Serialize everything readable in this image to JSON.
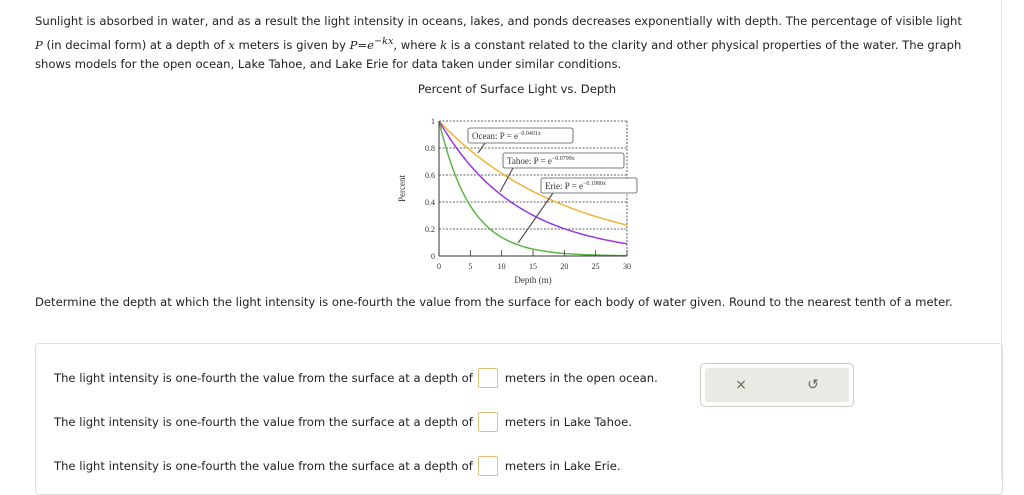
{
  "intro": {
    "line1": "Sunlight is absorbed in water, and as a result the light intensity in oceans, lakes, and ponds decreases exponentially with depth. The percentage of visible light",
    "line2_var": "P",
    "line2_a": " (in decimal form) at a depth of ",
    "line2_x": "x",
    "line2_b": " meters is given by ",
    "formula": "P=e",
    "formula_exp": "−kx",
    "line2_c": ", where ",
    "line2_k": "k",
    "line2_d": " is a constant related to the clarity and other physical properties of the water. The graph",
    "line3": "shows models for the open ocean, Lake Tahoe, and Lake Erie for data taken under similar conditions."
  },
  "chart_data": {
    "type": "line",
    "title": "Percent of Surface Light vs. Depth",
    "xlabel": "Depth (m)",
    "ylabel": "Percent",
    "xlim": [
      0,
      30
    ],
    "ylim": [
      0,
      1
    ],
    "xticks": [
      "0",
      "5",
      "10",
      "15",
      "20",
      "25",
      "30"
    ],
    "yticks": [
      "0",
      "0.2",
      "0.4",
      "0.6",
      "0.8",
      "1"
    ],
    "grid": "horizontal dashed",
    "series": [
      {
        "name": "Ocean",
        "label": "Ocean: P = e",
        "exponent": "−0.0491x",
        "k": 0.0491,
        "color": "#f0b43a"
      },
      {
        "name": "Tahoe",
        "label": "Tahoe: P = e",
        "exponent": "−0.0799x",
        "k": 0.0799,
        "color": "#9a35e6"
      },
      {
        "name": "Erie",
        "label": "Erie: P = e",
        "exponent": "−0.1980x",
        "k": 0.198,
        "color": "#5db547"
      }
    ]
  },
  "question": "Determine the depth at which the light intensity is one-fourth the value from the surface for each body of water given. Round to the nearest tenth of a meter.",
  "answers": [
    {
      "prefix": "The light intensity is one-fourth the value from the surface at a depth of",
      "value": "",
      "suffix": "meters in the open ocean."
    },
    {
      "prefix": "The light intensity is one-fourth the value from the surface at a depth of",
      "value": "",
      "suffix": "meters in Lake Tahoe."
    },
    {
      "prefix": "The light intensity is one-fourth the value from the surface at a depth of",
      "value": "",
      "suffix": "meters in Lake Erie."
    }
  ],
  "tools": {
    "clear": "×",
    "reset": "↺"
  }
}
